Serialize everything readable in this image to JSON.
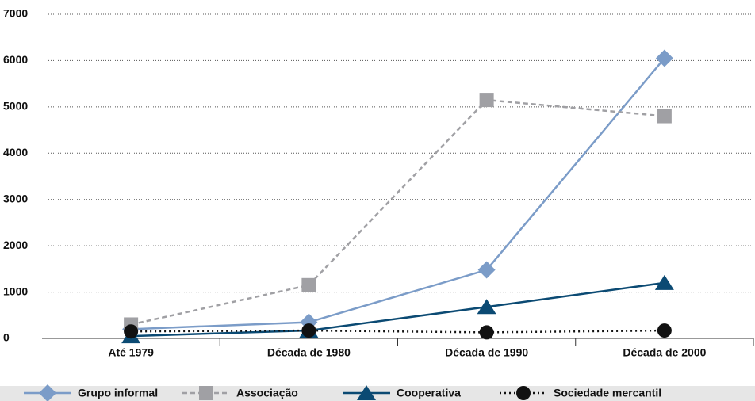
{
  "chart_data": {
    "type": "line",
    "categories": [
      "Até 1979",
      "Década de 1980",
      "Década de 1990",
      "Década de 2000"
    ],
    "series": [
      {
        "name": "Grupo informal",
        "color": "#7b9cc8",
        "marker": "diamond",
        "dash": "solid",
        "values": [
          200,
          350,
          1480,
          6050
        ]
      },
      {
        "name": "Associação",
        "color": "#a0a0a4",
        "marker": "square",
        "dash": "dashed",
        "values": [
          300,
          1150,
          5150,
          4800
        ]
      },
      {
        "name": "Cooperativa",
        "color": "#0b4a73",
        "marker": "triangle",
        "dash": "solid",
        "values": [
          50,
          170,
          680,
          1200
        ]
      },
      {
        "name": "Sociedade mercantil",
        "color": "#111111",
        "marker": "circle",
        "dash": "dotted",
        "values": [
          150,
          170,
          130,
          170
        ]
      }
    ],
    "ylim": [
      0,
      7000
    ],
    "yticks": [
      0,
      1000,
      2000,
      3000,
      4000,
      5000,
      6000,
      7000
    ],
    "grid": true,
    "legend": "bottom"
  }
}
